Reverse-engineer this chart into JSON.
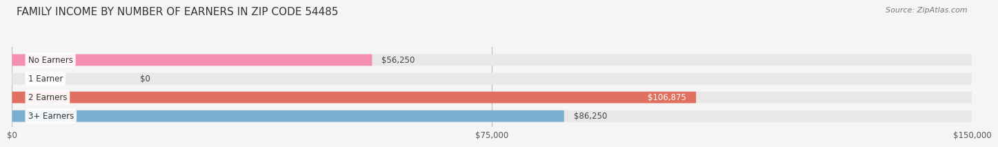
{
  "title": "FAMILY INCOME BY NUMBER OF EARNERS IN ZIP CODE 54485",
  "source": "Source: ZipAtlas.com",
  "categories": [
    "No Earners",
    "1 Earner",
    "2 Earners",
    "3+ Earners"
  ],
  "values": [
    56250,
    0,
    106875,
    86250
  ],
  "bar_colors": [
    "#f48fb1",
    "#f5c98a",
    "#e07060",
    "#7bafd4"
  ],
  "value_label_inside": [
    false,
    false,
    true,
    false
  ],
  "bar_bg_color": "#e8e8e8",
  "xlim": [
    0,
    150000
  ],
  "xticks": [
    0,
    75000,
    150000
  ],
  "xtick_labels": [
    "$0",
    "$75,000",
    "$150,000"
  ],
  "value_labels": [
    "$56,250",
    "$0",
    "$106,875",
    "$86,250"
  ],
  "background_color": "#f5f5f5",
  "title_fontsize": 11,
  "bar_height": 0.62,
  "figsize": [
    14.06,
    2.33
  ]
}
